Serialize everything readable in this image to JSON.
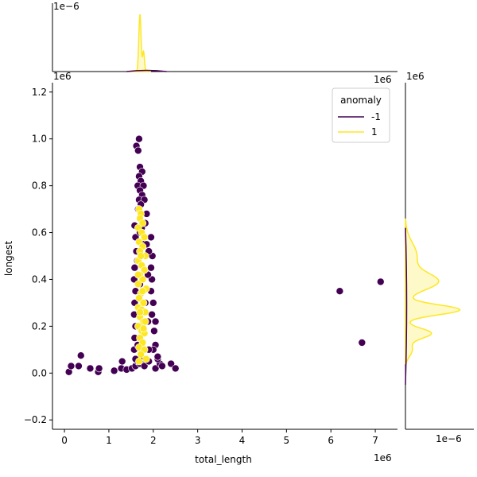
{
  "chart_data": {
    "type": "scatter",
    "xlabel": "total_length",
    "ylabel": "longest",
    "x_offset_label": "1e6",
    "y_offset_label": "1e6",
    "xlim": [
      -0.27,
      7.5
    ],
    "ylim": [
      -0.24,
      1.24
    ],
    "x_ticks": [
      0,
      1,
      2,
      3,
      4,
      5,
      6,
      7
    ],
    "y_ticks": [
      -0.2,
      0.0,
      0.2,
      0.4,
      0.6,
      0.8,
      1.0,
      1.2
    ],
    "x_tick_labels": [
      "0",
      "1",
      "2",
      "3",
      "4",
      "5",
      "6",
      "7"
    ],
    "y_tick_labels": [
      "−0.2",
      "0.0",
      "0.2",
      "0.4",
      "0.6",
      "0.8",
      "1.0",
      "1.2"
    ],
    "legend": {
      "title": "anomaly",
      "placement": "top-right",
      "entries": [
        {
          "label": "-1",
          "color": "#440154"
        },
        {
          "label": "1",
          "color": "#fde725"
        }
      ]
    },
    "series": [
      {
        "name": "-1",
        "color": "#440154",
        "points": [
          [
            0.1,
            0.005
          ],
          [
            0.15,
            0.03
          ],
          [
            0.32,
            0.03
          ],
          [
            0.37,
            0.075
          ],
          [
            0.58,
            0.02
          ],
          [
            0.76,
            0.005
          ],
          [
            0.78,
            0.02
          ],
          [
            1.12,
            0.01
          ],
          [
            1.28,
            0.02
          ],
          [
            1.3,
            0.05
          ],
          [
            1.4,
            0.015
          ],
          [
            1.52,
            0.02
          ],
          [
            1.6,
            0.03
          ],
          [
            1.65,
            0.05
          ],
          [
            2.05,
            0.02
          ],
          [
            2.15,
            0.04
          ],
          [
            2.2,
            0.03
          ],
          [
            2.4,
            0.04
          ],
          [
            2.5,
            0.02
          ],
          [
            2.1,
            0.06
          ],
          [
            1.58,
            0.63
          ],
          [
            1.6,
            0.58
          ],
          [
            1.62,
            0.52
          ],
          [
            1.58,
            0.45
          ],
          [
            1.57,
            0.4
          ],
          [
            1.6,
            0.35
          ],
          [
            1.58,
            0.3
          ],
          [
            1.57,
            0.25
          ],
          [
            1.6,
            0.2
          ],
          [
            1.58,
            0.15
          ],
          [
            1.57,
            0.1
          ],
          [
            1.6,
            0.06
          ],
          [
            1.95,
            0.58
          ],
          [
            1.98,
            0.5
          ],
          [
            1.95,
            0.45
          ],
          [
            1.97,
            0.4
          ],
          [
            1.95,
            0.35
          ],
          [
            2.0,
            0.3
          ],
          [
            1.97,
            0.25
          ],
          [
            2.05,
            0.22
          ],
          [
            2.02,
            0.18
          ],
          [
            2.05,
            0.12
          ],
          [
            2.0,
            0.1
          ],
          [
            2.1,
            0.07
          ],
          [
            1.7,
            0.04
          ],
          [
            1.8,
            0.03
          ],
          [
            1.9,
            0.05
          ],
          [
            1.75,
            0.06
          ],
          [
            1.68,
            1.0
          ],
          [
            1.62,
            0.97
          ],
          [
            1.66,
            0.95
          ],
          [
            1.7,
            0.88
          ],
          [
            1.75,
            0.86
          ],
          [
            1.68,
            0.84
          ],
          [
            1.72,
            0.82
          ],
          [
            1.65,
            0.8
          ],
          [
            1.78,
            0.8
          ],
          [
            1.7,
            0.78
          ],
          [
            1.75,
            0.76
          ],
          [
            1.68,
            0.74
          ],
          [
            1.8,
            0.74
          ],
          [
            1.72,
            0.72
          ],
          [
            1.66,
            0.7
          ],
          [
            1.85,
            0.68
          ],
          [
            1.74,
            0.62
          ],
          [
            1.7,
            0.6
          ],
          [
            1.82,
            0.64
          ],
          [
            1.77,
            0.56
          ],
          [
            1.85,
            0.55
          ],
          [
            1.9,
            0.52
          ],
          [
            1.64,
            0.48
          ],
          [
            1.88,
            0.42
          ],
          [
            1.7,
            0.38
          ],
          [
            1.82,
            0.3
          ],
          [
            1.88,
            0.22
          ],
          [
            1.65,
            0.12
          ],
          [
            1.9,
            0.1
          ],
          [
            1.75,
            0.2
          ],
          [
            6.2,
            0.35
          ],
          [
            6.7,
            0.13
          ],
          [
            7.12,
            0.39
          ]
        ]
      },
      {
        "name": "1",
        "color": "#fde725",
        "points": [
          [
            1.68,
            0.7
          ],
          [
            1.72,
            0.68
          ],
          [
            1.7,
            0.66
          ],
          [
            1.76,
            0.64
          ],
          [
            1.66,
            0.62
          ],
          [
            1.74,
            0.6
          ],
          [
            1.8,
            0.58
          ],
          [
            1.68,
            0.56
          ],
          [
            1.76,
            0.54
          ],
          [
            1.7,
            0.52
          ],
          [
            1.82,
            0.5
          ],
          [
            1.66,
            0.48
          ],
          [
            1.74,
            0.46
          ],
          [
            1.8,
            0.44
          ],
          [
            1.7,
            0.42
          ],
          [
            1.76,
            0.4
          ],
          [
            1.66,
            0.38
          ],
          [
            1.84,
            0.36
          ],
          [
            1.72,
            0.34
          ],
          [
            1.68,
            0.32
          ],
          [
            1.78,
            0.3
          ],
          [
            1.66,
            0.28
          ],
          [
            1.74,
            0.27
          ],
          [
            1.82,
            0.26
          ],
          [
            1.7,
            0.24
          ],
          [
            1.78,
            0.22
          ],
          [
            1.66,
            0.2
          ],
          [
            1.74,
            0.18
          ],
          [
            1.8,
            0.17
          ],
          [
            1.7,
            0.15
          ],
          [
            1.76,
            0.13
          ],
          [
            1.68,
            0.11
          ],
          [
            1.8,
            0.1
          ],
          [
            1.72,
            0.08
          ],
          [
            1.84,
            0.06
          ],
          [
            1.68,
            0.05
          ],
          [
            1.76,
            0.35
          ],
          [
            1.7,
            0.26
          ],
          [
            1.78,
            0.19
          ],
          [
            1.66,
            0.42
          ],
          [
            1.82,
            0.22
          ],
          [
            1.72,
            0.5
          ]
        ]
      }
    ],
    "marginal_x": {
      "offset_label": "1e−6",
      "series": [
        {
          "name": "1",
          "color": "#fde725",
          "peak_at": 1.7
        }
      ]
    },
    "marginal_y": {
      "offset_label": "1e−6",
      "series": [
        {
          "name": "1",
          "color": "#fde725"
        }
      ]
    }
  }
}
